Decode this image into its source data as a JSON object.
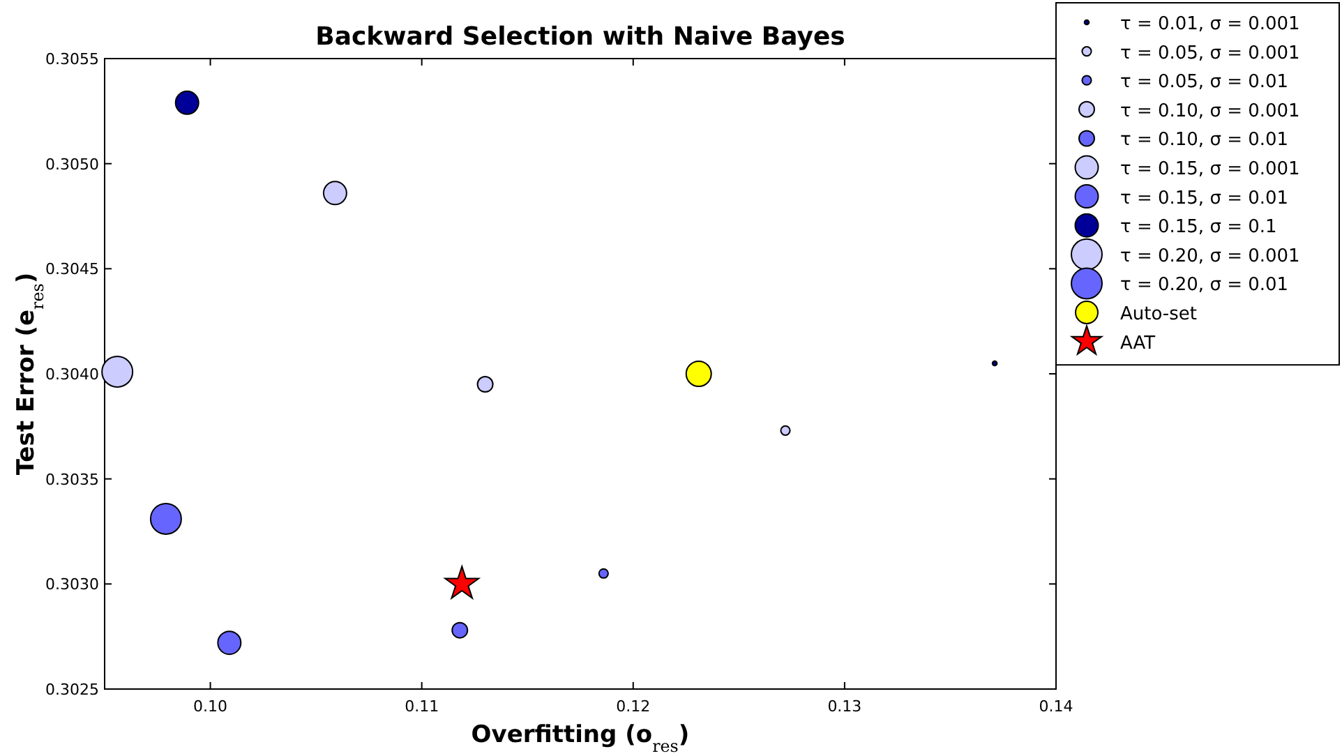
{
  "chart_data": {
    "type": "scatter",
    "title": "Backward Selection with Naive Bayes",
    "xlabel": "Overfitting (o$_{res}$)",
    "ylabel": "Test Error (e$_{res}$)",
    "xlim": [
      0.095,
      0.14
    ],
    "xticks": [
      {
        "value": 0.1,
        "label": "0.10"
      },
      {
        "value": 0.11,
        "label": "0.11"
      },
      {
        "value": 0.12,
        "label": "0.12"
      },
      {
        "value": 0.13,
        "label": "0.13"
      },
      {
        "value": 0.14,
        "label": "0.14"
      }
    ],
    "ylim": [
      0.3025,
      0.3055
    ],
    "yticks": [
      {
        "value": 0.3025,
        "label": "0.3025"
      },
      {
        "value": 0.303,
        "label": "0.3030"
      },
      {
        "value": 0.3035,
        "label": "0.3035"
      },
      {
        "value": 0.304,
        "label": "0.3040"
      },
      {
        "value": 0.3045,
        "label": "0.3045"
      },
      {
        "value": 0.305,
        "label": "0.3050"
      },
      {
        "value": 0.3055,
        "label": "0.3055"
      }
    ],
    "grid": false,
    "legend": "top right",
    "marker": "circle",
    "series": [
      {
        "name": "τ = 0.01, σ = 0.001",
        "type": "bubble",
        "color": "#000080",
        "x": [
          0.1371
        ],
        "values": [
          0.30405
        ],
        "sizes": [
          0.0225
        ]
      },
      {
        "name": "τ = 0.05, σ = 0.001",
        "type": "bubble",
        "color": "#ccccff",
        "x": [
          0.1272
        ],
        "values": [
          0.30373
        ],
        "sizes": [
          0.09
        ]
      },
      {
        "name": "τ = 0.05, σ = 0.01",
        "type": "bubble",
        "color": "#6666ff",
        "x": [
          0.1186
        ],
        "values": [
          0.30305
        ],
        "sizes": [
          0.09
        ]
      },
      {
        "name": "τ = 0.10, σ = 0.001",
        "type": "bubble",
        "color": "#ccccff",
        "x": [
          0.113
        ],
        "values": [
          0.30395
        ],
        "sizes": [
          0.25
        ]
      },
      {
        "name": "τ = 0.10, σ = 0.01",
        "type": "bubble",
        "color": "#6666ff",
        "x": [
          0.1118
        ],
        "values": [
          0.30278
        ],
        "sizes": [
          0.25
        ]
      },
      {
        "name": "τ = 0.15, σ = 0.001",
        "type": "bubble",
        "color": "#ccccff",
        "x": [
          0.1059
        ],
        "values": [
          0.30486
        ],
        "sizes": [
          0.5625
        ]
      },
      {
        "name": "τ = 0.15, σ = 0.01",
        "type": "bubble",
        "color": "#6666ff",
        "x": [
          0.1009
        ],
        "values": [
          0.30272
        ],
        "sizes": [
          0.5625
        ]
      },
      {
        "name": "τ = 0.15, σ = 0.1",
        "type": "bubble",
        "color": "#000099",
        "x": [
          0.0989
        ],
        "values": [
          0.30529
        ],
        "sizes": [
          0.5625
        ]
      },
      {
        "name": "τ = 0.20, σ = 0.001",
        "type": "bubble",
        "color": "#ccccff",
        "x": [
          0.0956
        ],
        "values": [
          0.30401
        ],
        "sizes": [
          1
        ]
      },
      {
        "name": "τ = 0.20, σ = 0.01",
        "type": "bubble",
        "color": "#6666ff",
        "x": [
          0.0979
        ],
        "values": [
          0.30331
        ],
        "sizes": [
          1
        ]
      },
      {
        "name": "Auto-set",
        "type": "scatter",
        "color": "#ffff00",
        "x": [
          0.1231
        ],
        "values": [
          0.304
        ]
      },
      {
        "name": "AAT",
        "type": "scatter",
        "marker": "star",
        "color": "#ff0000",
        "x": [
          0.1119
        ],
        "values": [
          0.303
        ]
      }
    ]
  }
}
